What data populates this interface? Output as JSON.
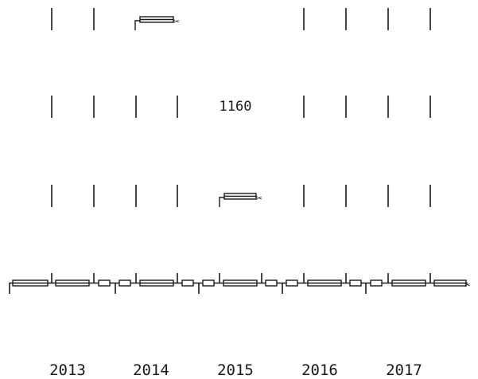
{
  "center_value": "1160",
  "years": [
    "2013",
    "2014",
    "2015",
    "2016",
    "2017"
  ],
  "scissors_glyph": "✂",
  "ink_color": "#1a1a1a",
  "background_color": "#ffffff"
}
